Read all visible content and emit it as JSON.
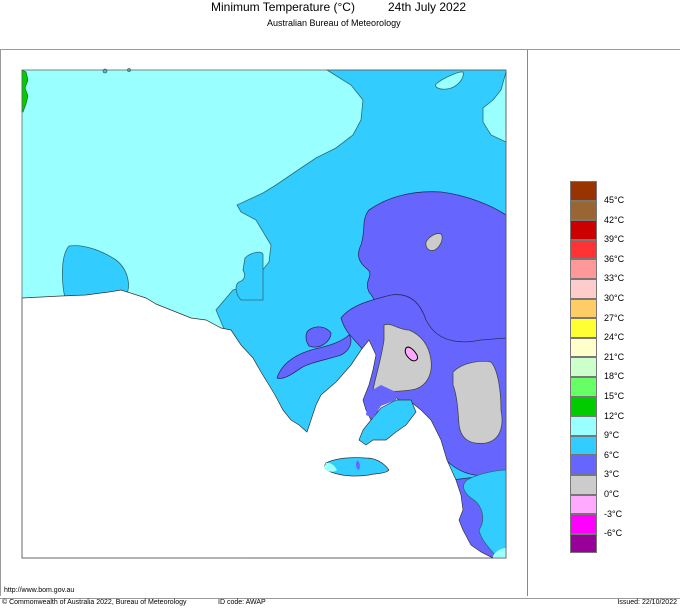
{
  "header": {
    "title": "Minimum Temperature (°C)",
    "date": "24th July 2022",
    "subtitle": "Australian Bureau of Meteorology"
  },
  "footer": {
    "url": "http://www.bom.gov.au",
    "copyright": "© Commonwealth of Australia 2022, Bureau of Meteorology",
    "id_code": "ID code: AWAP",
    "issued": "Issued: 22/10/2022"
  },
  "legend": {
    "items": [
      {
        "color": "#993300",
        "label": "45°C"
      },
      {
        "color": "#996633",
        "label": "42°C"
      },
      {
        "color": "#cc0000",
        "label": "39°C"
      },
      {
        "color": "#ff3333",
        "label": "36°C"
      },
      {
        "color": "#ff9999",
        "label": "33°C"
      },
      {
        "color": "#ffcccc",
        "label": "30°C"
      },
      {
        "color": "#ffcc66",
        "label": "27°C"
      },
      {
        "color": "#ffff33",
        "label": "24°C"
      },
      {
        "color": "#ffffcc",
        "label": "21°C"
      },
      {
        "color": "#ccffcc",
        "label": "18°C"
      },
      {
        "color": "#66ff66",
        "label": "15°C"
      },
      {
        "color": "#00cc00",
        "label": "12°C"
      },
      {
        "color": "#99ffff",
        "label": "9°C"
      },
      {
        "color": "#33ccff",
        "label": "6°C"
      },
      {
        "color": "#6666ff",
        "label": "3°C"
      },
      {
        "color": "#cccccc",
        "label": "0°C"
      },
      {
        "color": "#ffaaff",
        "label": "-3°C"
      },
      {
        "color": "#ff00ff",
        "label": "-6°C"
      },
      {
        "color": "#990099",
        "label": ""
      }
    ]
  },
  "map": {
    "region": "South Australia",
    "colors": {
      "band_9_12": "#99ffff",
      "band_6_9": "#33ccff",
      "band_3_6": "#6666ff",
      "band_0_3": "#cccccc",
      "band_m3_0": "#ffaaff",
      "band_12_15": "#00cc00",
      "sea": "#ffffff"
    }
  }
}
